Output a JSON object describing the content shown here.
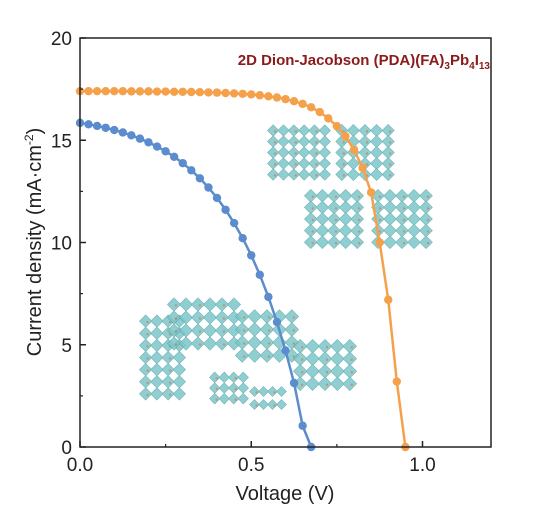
{
  "chart_data": {
    "type": "line",
    "title": {
      "main": "2D Dion-Jacobson (PDA)(FA)",
      "sub1": "3",
      "mid1": "Pb",
      "sub2": "4",
      "mid2": "I",
      "sub3": "13"
    },
    "xlabel": "Voltage (V)",
    "ylabel": {
      "main": "Current density (mA·cm",
      "sup": "-2",
      "end": ")"
    },
    "xlim": [
      0,
      1.2
    ],
    "ylim": [
      0,
      20
    ],
    "x_ticks": [
      {
        "value": 0,
        "label": "0.0"
      },
      {
        "value": 0.5,
        "label": "0.5"
      },
      {
        "value": 1.0,
        "label": "1.0"
      }
    ],
    "y_ticks": [
      {
        "value": 0,
        "label": "0"
      },
      {
        "value": 5,
        "label": "5"
      },
      {
        "value": 10,
        "label": "10"
      },
      {
        "value": 15,
        "label": "15"
      },
      {
        "value": 20,
        "label": "20"
      }
    ],
    "grid": false,
    "colors": {
      "orange": "#f5a04a",
      "blue": "#5b8ccd",
      "crystal": "#7cc6c9",
      "title": "#8b1a1a"
    },
    "series": [
      {
        "color": "#f5a04a",
        "x": [
          0.0,
          0.025,
          0.05,
          0.075,
          0.1,
          0.125,
          0.15,
          0.175,
          0.2,
          0.225,
          0.25,
          0.275,
          0.3,
          0.325,
          0.35,
          0.375,
          0.4,
          0.425,
          0.45,
          0.475,
          0.5,
          0.525,
          0.55,
          0.575,
          0.6,
          0.625,
          0.65,
          0.675,
          0.7,
          0.725,
          0.75,
          0.775,
          0.8,
          0.825,
          0.85,
          0.875,
          0.9,
          0.925,
          0.95,
          0.975,
          1.0,
          1.025,
          1.05,
          1.075,
          1.1
        ],
        "y": [
          17.4,
          17.4,
          17.4,
          17.4,
          17.4,
          17.4,
          17.39,
          17.39,
          17.39,
          17.38,
          17.38,
          17.37,
          17.37,
          17.36,
          17.35,
          17.34,
          17.33,
          17.31,
          17.29,
          17.27,
          17.24,
          17.2,
          17.15,
          17.09,
          17.01,
          16.91,
          16.78,
          16.61,
          16.38,
          16.07,
          15.69,
          15.2,
          14.54,
          13.65,
          12.45,
          10.0,
          7.2,
          3.2,
          0.0,
          0,
          0,
          0,
          0,
          0,
          0
        ]
      },
      {
        "color": "#5b8ccd",
        "x": [
          0.0,
          0.025,
          0.05,
          0.075,
          0.1,
          0.125,
          0.15,
          0.175,
          0.2,
          0.225,
          0.25,
          0.275,
          0.3,
          0.325,
          0.35,
          0.375,
          0.4,
          0.425,
          0.45,
          0.475,
          0.5,
          0.525,
          0.55,
          0.575,
          0.6,
          0.625,
          0.65,
          0.675,
          0.7,
          0.725,
          0.75,
          0.775,
          0.8
        ],
        "y": [
          15.85,
          15.78,
          15.7,
          15.61,
          15.5,
          15.38,
          15.24,
          15.08,
          14.9,
          14.69,
          14.46,
          14.19,
          13.88,
          13.53,
          13.14,
          12.69,
          12.18,
          11.6,
          10.95,
          10.21,
          9.37,
          8.42,
          7.34,
          6.11,
          4.72,
          3.13,
          1.04,
          0,
          0,
          0,
          0,
          0,
          0
        ]
      }
    ]
  }
}
